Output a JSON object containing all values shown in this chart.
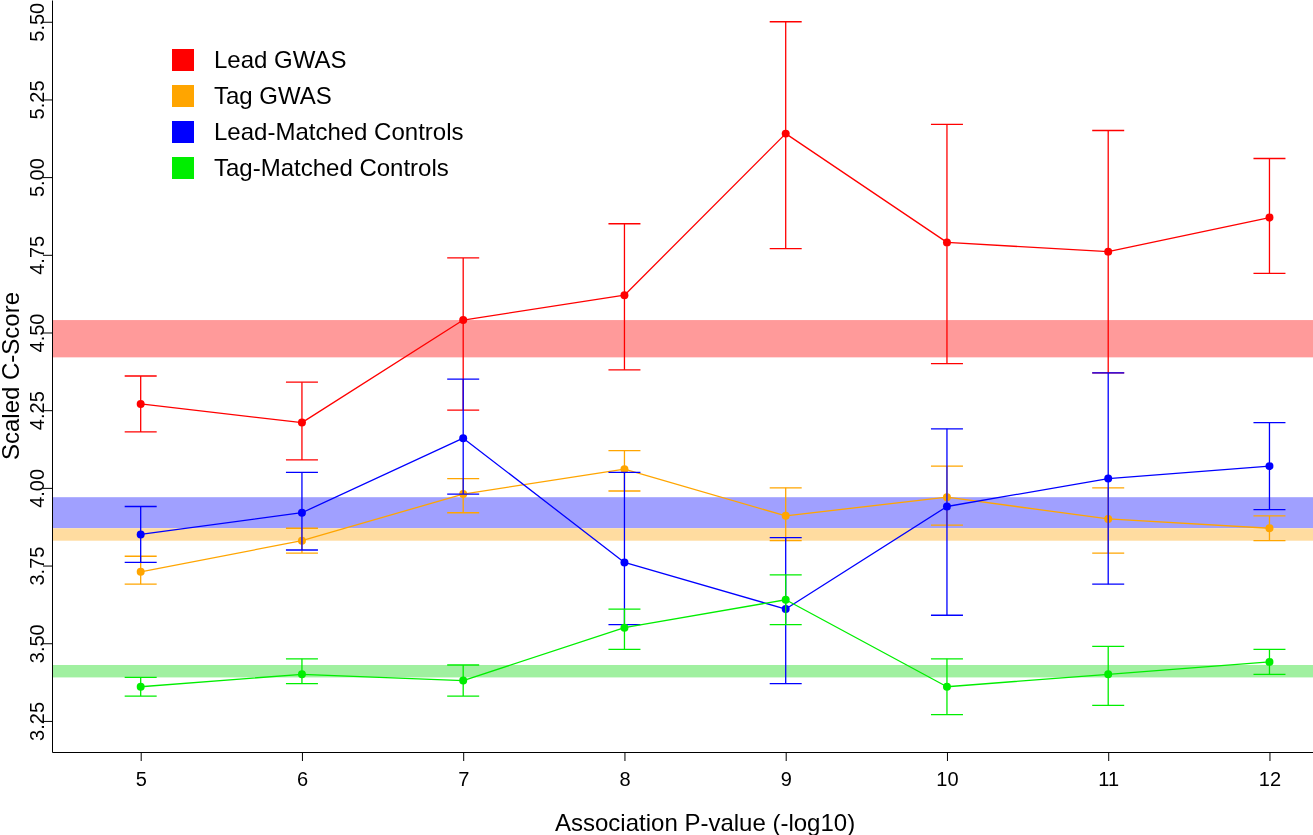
{
  "chart_data": {
    "type": "line",
    "xlabel": "Association P-value (-log10)",
    "ylabel": "Scaled C-Score",
    "x": [
      5,
      6,
      7,
      8,
      9,
      10,
      11,
      12
    ],
    "series": [
      {
        "name": "Lead GWAS",
        "color": "#ff0000",
        "values": [
          4.27,
          4.21,
          4.54,
          4.62,
          5.14,
          4.79,
          4.76,
          4.87
        ],
        "errors": [
          [
            4.18,
            4.36
          ],
          [
            4.09,
            4.34
          ],
          [
            4.25,
            4.74
          ],
          [
            4.38,
            4.85
          ],
          [
            4.77,
            5.5
          ],
          [
            4.4,
            5.17
          ],
          [
            4.37,
            5.15
          ],
          [
            4.69,
            5.06
          ]
        ]
      },
      {
        "name": "Tag GWAS",
        "color": "#ffa500",
        "values": [
          3.73,
          3.83,
          3.98,
          4.06,
          3.91,
          3.97,
          3.9,
          3.87
        ],
        "errors": [
          [
            3.69,
            3.78
          ],
          [
            3.79,
            3.87
          ],
          [
            3.92,
            4.03
          ],
          [
            3.99,
            4.12
          ],
          [
            3.83,
            4.0
          ],
          [
            3.88,
            4.07
          ],
          [
            3.79,
            4.0
          ],
          [
            3.83,
            3.91
          ]
        ]
      },
      {
        "name": "Lead-Matched Controls",
        "color": "#0000ff",
        "values": [
          3.85,
          3.92,
          4.16,
          3.76,
          3.61,
          3.94,
          4.03,
          4.07
        ],
        "errors": [
          [
            3.76,
            3.94
          ],
          [
            3.8,
            4.05
          ],
          [
            3.98,
            4.35
          ],
          [
            3.56,
            4.05
          ],
          [
            3.37,
            3.84
          ],
          [
            3.59,
            4.19
          ],
          [
            3.69,
            4.37
          ],
          [
            3.93,
            4.21
          ]
        ]
      },
      {
        "name": "Tag-Matched Controls",
        "color": "#00ee00",
        "values": [
          3.36,
          3.4,
          3.38,
          3.55,
          3.64,
          3.36,
          3.4,
          3.44
        ],
        "errors": [
          [
            3.33,
            3.39
          ],
          [
            3.37,
            3.45
          ],
          [
            3.33,
            3.43
          ],
          [
            3.48,
            3.61
          ],
          [
            3.56,
            3.72
          ],
          [
            3.27,
            3.45
          ],
          [
            3.3,
            3.49
          ],
          [
            3.4,
            3.48
          ]
        ]
      }
    ],
    "bands": [
      {
        "axis": "y",
        "from": 4.42,
        "to": 4.54,
        "color": "#ff9a9a"
      },
      {
        "axis": "y",
        "from": 3.87,
        "to": 3.97,
        "color": "#a0a0ff"
      },
      {
        "axis": "y",
        "from": 3.83,
        "to": 3.87,
        "color": "#ffdca0"
      },
      {
        "axis": "y",
        "from": 3.39,
        "to": 3.43,
        "color": "#a0f0a0"
      }
    ],
    "xlim": [
      4.45,
      12.27
    ],
    "ylim": [
      3.15,
      5.57
    ],
    "xticks": [
      5,
      6,
      7,
      8,
      9,
      10,
      11,
      12
    ],
    "yticks": [
      {
        "value": 3.25,
        "label": "3.25"
      },
      {
        "value": 3.5,
        "label": "3.50"
      },
      {
        "value": 3.75,
        "label": "3.75"
      },
      {
        "value": 4.0,
        "label": "4.00"
      },
      {
        "value": 4.25,
        "label": "4.25"
      },
      {
        "value": 4.5,
        "label": "4.50"
      },
      {
        "value": 4.75,
        "label": "4.75"
      },
      {
        "value": 5.0,
        "label": "5.00"
      },
      {
        "value": 5.25,
        "label": "5.25"
      },
      {
        "value": 5.5,
        "label": "5.50"
      }
    ],
    "legend": "top left",
    "marker": "circle",
    "line_style": "solid"
  }
}
